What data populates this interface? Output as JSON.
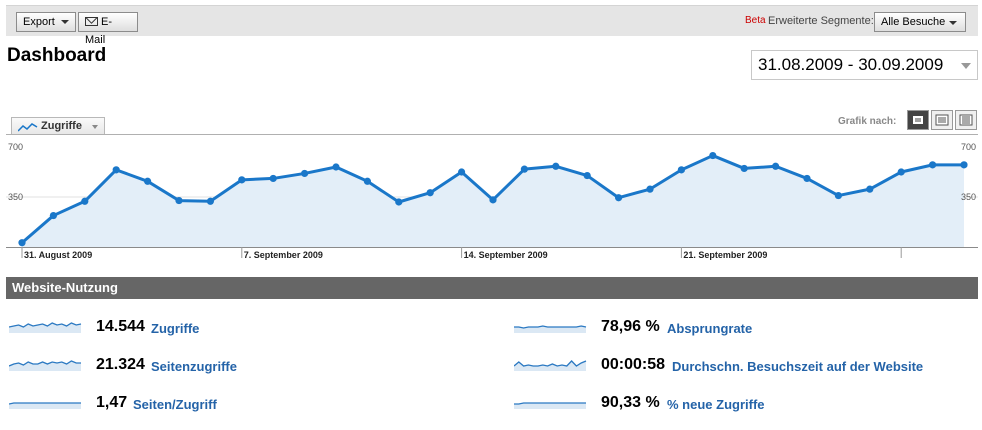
{
  "toolbar": {
    "export_label": "Export",
    "email_label": "E-Mail",
    "beta_label": "Beta",
    "segments_label": "Erweiterte Segmente:",
    "segments_value": "Alle Besuche"
  },
  "page": {
    "title": "Dashboard",
    "date_range": "31.08.2009 - 30.09.2009"
  },
  "chart_controls": {
    "metric_label": "Zugriffe",
    "graph_by_label": "Grafik nach:"
  },
  "chart_data": {
    "type": "area",
    "series": [
      {
        "name": "Zugriffe",
        "values": [
          30,
          220,
          320,
          540,
          460,
          325,
          320,
          470,
          480,
          515,
          560,
          460,
          315,
          380,
          525,
          330,
          545,
          565,
          500,
          345,
          405,
          540,
          640,
          550,
          565,
          480,
          360,
          405,
          525,
          575,
          575
        ]
      }
    ],
    "ylim": [
      0,
      700
    ],
    "y_ticks": [
      "700",
      "350"
    ],
    "x_tick_labels": [
      "31. August 2009",
      "7. September 2009",
      "14. September 2009",
      "21. September 2009"
    ],
    "grid": true,
    "colors": {
      "line": "#1a77c9",
      "fill": "#e3eef8"
    }
  },
  "section": {
    "title": "Website-Nutzung"
  },
  "stats_left": [
    {
      "value": "14.544",
      "label": "Zugriffe"
    },
    {
      "value": "21.324",
      "label": "Seitenzugriffe"
    },
    {
      "value": "1,47",
      "label": "Seiten/Zugriff"
    }
  ],
  "stats_right": [
    {
      "value": "78,96 %",
      "label": "Absprungrate"
    },
    {
      "value": "00:00:58",
      "label": "Durchschn. Besuchszeit auf der Website"
    },
    {
      "value": "90,33 %",
      "label": "% neue Zugriffe"
    }
  ],
  "colors": {
    "accent": "#1a77c9",
    "link": "#2463a8",
    "header": "#666666"
  }
}
